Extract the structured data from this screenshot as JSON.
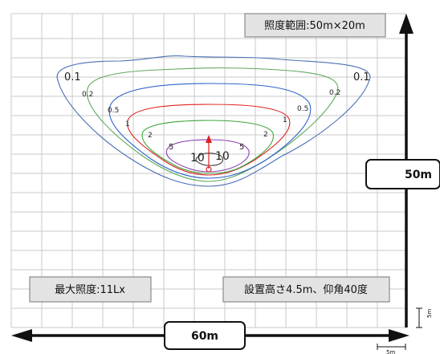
{
  "info_boxes": {
    "range": "照度範囲:50m×20m",
    "max_lux": "最大照度:11Lx",
    "install": "設置高さ4.5m、仰角40度"
  },
  "dimensions": {
    "width": "60m",
    "depth": "50m",
    "grid_h": "5m",
    "grid_v": "5m"
  },
  "contour_labels": {
    "c01_left": "0.1",
    "c01_right": "0.1",
    "c02_left": "0.2",
    "c02_right": "0.2",
    "c05_left": "0.5",
    "c05_right": "0.5",
    "c1_left": "1",
    "c1_right": "1",
    "c2_left": "2",
    "c2_right": "2",
    "c5_left": "5",
    "c5_right": "5",
    "c10_left": "10",
    "c10_right": "10"
  },
  "colors": {
    "c01": "#4a6fb5",
    "c02": "#5fa85a",
    "c05": "#2f63c9",
    "c1": "#e02020",
    "c2": "#3fa63f",
    "c5": "#8b3fb0",
    "c10": "#3a3a3a",
    "arrow": "#e02020"
  }
}
